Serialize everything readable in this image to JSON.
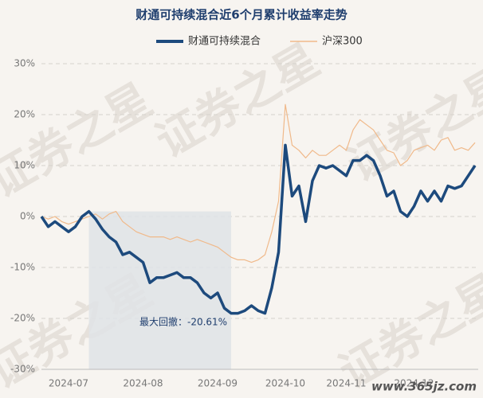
{
  "chart_data": {
    "type": "line",
    "title": "财通可持续混合近6个月累计收益率走势",
    "categories": [
      null,
      null,
      null,
      null,
      "2024-07",
      null,
      null,
      null,
      null,
      null,
      null,
      null,
      null,
      null,
      null,
      "2024-08",
      null,
      null,
      null,
      null,
      null,
      null,
      null,
      null,
      null,
      null,
      "2024-09",
      null,
      null,
      null,
      null,
      null,
      null,
      null,
      null,
      null,
      "2024-10",
      null,
      null,
      null,
      null,
      null,
      null,
      null,
      null,
      "2024-11",
      null,
      null,
      null,
      null,
      null,
      null,
      null,
      null,
      null,
      "2024-12",
      null,
      null,
      null,
      null,
      null,
      null,
      null,
      null,
      null
    ],
    "series": [
      {
        "name": "财通可持续混合",
        "color": "#1d4a7d",
        "values": [
          0,
          -2,
          -1,
          -2,
          -3,
          -2,
          0,
          1,
          -0.5,
          -2.5,
          -4,
          -5,
          -7.5,
          -7,
          -8,
          -9,
          -13,
          -12,
          -12,
          -11.5,
          -11,
          -12,
          -12,
          -13,
          -15,
          -16,
          -15,
          -18,
          -19,
          -19,
          -18.5,
          -17.5,
          -18.5,
          -19,
          -14,
          -7,
          14,
          4,
          6,
          -1,
          7,
          10,
          9.5,
          10,
          9,
          8,
          11,
          11,
          12,
          11,
          8,
          4,
          5,
          1,
          0,
          2,
          5,
          3,
          5,
          3,
          6,
          5.5,
          6,
          8,
          10
        ]
      },
      {
        "name": "沪深300",
        "color": "#f0b98a",
        "values": [
          0,
          -0.5,
          0,
          -1,
          -1.5,
          -1,
          -0.5,
          0,
          0.5,
          -0.5,
          0.5,
          1,
          -1,
          -2,
          -3,
          -3.5,
          -4,
          -4,
          -4,
          -4.5,
          -4,
          -4.5,
          -5,
          -4.5,
          -5,
          -5.5,
          -6,
          -7,
          -8,
          -8.5,
          -8.5,
          -9,
          -8.5,
          -7.5,
          -3,
          3,
          22,
          14,
          13,
          11.5,
          13,
          12,
          12,
          13,
          14,
          13,
          17,
          19,
          18,
          17,
          15,
          13,
          12.5,
          10,
          11,
          13,
          13.5,
          14,
          13,
          15,
          15.5,
          13,
          13.5,
          13,
          14.5
        ]
      }
    ],
    "ylim": [
      -30,
      30
    ],
    "yticks": [
      {
        "value": -30,
        "label": "-30%"
      },
      {
        "value": -20,
        "label": "-20%"
      },
      {
        "value": -10,
        "label": "-10%"
      },
      {
        "value": 0,
        "label": "0%"
      },
      {
        "value": 10,
        "label": "10%"
      },
      {
        "value": 20,
        "label": "20%"
      },
      {
        "value": 30,
        "label": "30%"
      }
    ],
    "grid": true,
    "annotation": "最大回撤：-20.61%",
    "watermark": "证券之星",
    "site_watermark": "www.365jz.com"
  }
}
